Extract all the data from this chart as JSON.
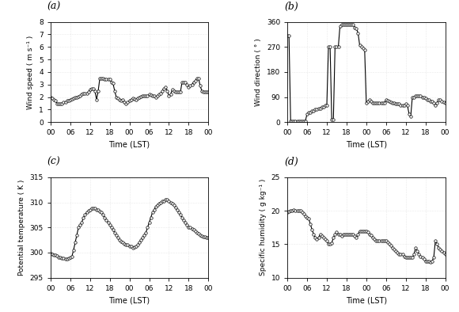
{
  "panel_labels": [
    "(a)",
    "(b)",
    "(c)",
    "(d)"
  ],
  "xlabel": "Time (LST)",
  "xlim": [
    0,
    48
  ],
  "xticks": [
    0,
    6,
    12,
    18,
    24,
    30,
    36,
    42,
    48
  ],
  "xticklabels": [
    "00",
    "06",
    "12",
    "18",
    "00",
    "06",
    "12",
    "18",
    "00"
  ],
  "wind_speed": {
    "ylabel": "Wind speed ( m s⁻¹ )",
    "ylim": [
      0,
      8
    ],
    "yticks": [
      0,
      1,
      2,
      3,
      4,
      5,
      6,
      7,
      8
    ],
    "data_x": [
      0,
      0.5,
      1,
      1.5,
      2,
      2.5,
      3,
      3.5,
      4,
      4.5,
      5,
      5.5,
      6,
      6.5,
      7,
      7.5,
      8,
      8.5,
      9,
      9.5,
      10,
      10.5,
      11,
      11.5,
      12,
      12.5,
      13,
      13.5,
      14,
      14.5,
      15,
      15.5,
      16,
      16.5,
      17,
      17.5,
      18,
      18.5,
      19,
      19.5,
      20,
      20.5,
      21,
      21.5,
      22,
      22.5,
      23,
      23.5,
      24,
      24.5,
      25,
      25.5,
      26,
      26.5,
      27,
      27.5,
      28,
      28.5,
      29,
      29.5,
      30,
      30.5,
      31,
      31.5,
      32,
      32.5,
      33,
      33.5,
      34,
      34.5,
      35,
      35.5,
      36,
      36.5,
      37,
      37.5,
      38,
      38.5,
      39,
      39.5,
      40,
      40.5,
      41,
      41.5,
      42,
      42.5,
      43,
      43.5,
      44,
      44.5,
      45,
      45.5,
      46,
      46.5,
      47,
      47.5,
      48
    ],
    "data_y": [
      2.0,
      1.9,
      1.8,
      1.7,
      1.5,
      1.5,
      1.5,
      1.5,
      1.6,
      1.6,
      1.7,
      1.75,
      1.8,
      1.85,
      1.9,
      1.95,
      2.0,
      2.05,
      2.1,
      2.2,
      2.3,
      2.3,
      2.3,
      2.4,
      2.6,
      2.7,
      2.7,
      2.5,
      1.8,
      2.5,
      3.5,
      3.5,
      3.5,
      3.45,
      3.4,
      3.4,
      3.4,
      3.2,
      3.1,
      2.5,
      2.0,
      1.9,
      1.8,
      1.75,
      1.8,
      1.6,
      1.5,
      1.6,
      1.7,
      1.8,
      1.9,
      1.85,
      1.8,
      1.9,
      2.0,
      2.05,
      2.1,
      2.1,
      2.1,
      2.1,
      2.2,
      2.15,
      2.1,
      2.1,
      2.0,
      2.1,
      2.2,
      2.3,
      2.5,
      2.7,
      2.8,
      2.5,
      2.1,
      2.2,
      2.6,
      2.5,
      2.4,
      2.4,
      2.4,
      2.4,
      3.2,
      3.2,
      3.2,
      3.0,
      2.8,
      2.9,
      3.0,
      3.2,
      3.3,
      3.5,
      3.5,
      2.9,
      2.5,
      2.4,
      2.4,
      2.4,
      2.4
    ]
  },
  "wind_dir": {
    "ylabel": "Wind direction ( ° )",
    "ylim": [
      0,
      360
    ],
    "yticks": [
      0,
      90,
      180,
      270,
      360
    ],
    "data_x": [
      0,
      0.5,
      1,
      1.5,
      2,
      2.5,
      3,
      3.5,
      4,
      4.5,
      5,
      5.5,
      6,
      6.5,
      7,
      7.5,
      8,
      8.5,
      9,
      9.5,
      10,
      10.5,
      11,
      11.5,
      12,
      12.5,
      13,
      13.5,
      14,
      14.5,
      15,
      15.5,
      16,
      16.5,
      17,
      17.5,
      18,
      18.5,
      19,
      19.5,
      20,
      20.5,
      21,
      21.5,
      22,
      22.5,
      23,
      23.5,
      24,
      24.5,
      25,
      25.5,
      26,
      26.5,
      27,
      27.5,
      28,
      28.5,
      29,
      29.5,
      30,
      30.5,
      31,
      31.5,
      32,
      32.5,
      33,
      33.5,
      34,
      34.5,
      35,
      35.5,
      36,
      36.5,
      37,
      37.5,
      38,
      38.5,
      39,
      39.5,
      40,
      40.5,
      41,
      41.5,
      42,
      42.5,
      43,
      43.5,
      44,
      44.5,
      45,
      45.5,
      46,
      46.5,
      47,
      47.5,
      48
    ],
    "data_y": [
      310,
      310,
      5,
      5,
      5,
      5,
      5,
      5,
      5,
      5,
      5,
      5,
      30,
      35,
      35,
      40,
      40,
      45,
      45,
      50,
      50,
      55,
      55,
      60,
      60,
      270,
      270,
      10,
      10,
      270,
      270,
      270,
      345,
      350,
      350,
      350,
      350,
      350,
      350,
      350,
      350,
      340,
      335,
      320,
      275,
      270,
      265,
      260,
      70,
      75,
      80,
      75,
      70,
      70,
      70,
      70,
      70,
      70,
      70,
      70,
      80,
      78,
      75,
      72,
      70,
      68,
      65,
      65,
      65,
      60,
      60,
      60,
      65,
      60,
      30,
      20,
      90,
      90,
      95,
      95,
      95,
      95,
      90,
      88,
      85,
      80,
      80,
      75,
      75,
      70,
      60,
      70,
      80,
      80,
      75,
      72,
      70
    ]
  },
  "pot_temp": {
    "ylabel": "Potential temperature ( K )",
    "ylim": [
      295,
      315
    ],
    "yticks": [
      295,
      300,
      305,
      310,
      315
    ],
    "data_x": [
      0,
      0.5,
      1,
      1.5,
      2,
      2.5,
      3,
      3.5,
      4,
      4.5,
      5,
      5.5,
      6,
      6.5,
      7,
      7.5,
      8,
      8.5,
      9,
      9.5,
      10,
      10.5,
      11,
      11.5,
      12,
      12.5,
      13,
      13.5,
      14,
      14.5,
      15,
      15.5,
      16,
      16.5,
      17,
      17.5,
      18,
      18.5,
      19,
      19.5,
      20,
      20.5,
      21,
      21.5,
      22,
      22.5,
      23,
      23.5,
      24,
      24.5,
      25,
      25.5,
      26,
      26.5,
      27,
      27.5,
      28,
      28.5,
      29,
      29.5,
      30,
      30.5,
      31,
      31.5,
      32,
      32.5,
      33,
      33.5,
      34,
      34.5,
      35,
      35.5,
      36,
      36.5,
      37,
      37.5,
      38,
      38.5,
      39,
      39.5,
      40,
      40.5,
      41,
      41.5,
      42,
      42.5,
      43,
      43.5,
      44,
      44.5,
      45,
      45.5,
      46,
      46.5,
      47,
      47.5,
      48
    ],
    "data_y": [
      299.8,
      299.7,
      299.6,
      299.5,
      299.3,
      299.1,
      299.0,
      298.9,
      298.9,
      298.8,
      298.8,
      298.9,
      299.0,
      299.2,
      300.5,
      302.0,
      303.5,
      305.0,
      305.5,
      306.0,
      307.0,
      307.5,
      308.0,
      308.3,
      308.5,
      308.8,
      308.8,
      308.8,
      308.6,
      308.5,
      308.2,
      308.0,
      307.5,
      307.0,
      306.5,
      306.0,
      305.5,
      305.0,
      304.5,
      304.0,
      303.5,
      303.0,
      302.5,
      302.2,
      302.0,
      301.8,
      301.5,
      301.5,
      301.3,
      301.2,
      301.0,
      301.1,
      301.2,
      301.5,
      302.0,
      302.5,
      303.0,
      303.5,
      304.0,
      305.0,
      306.0,
      307.0,
      308.0,
      308.5,
      309.2,
      309.5,
      309.8,
      310.0,
      310.2,
      310.3,
      310.5,
      310.5,
      310.2,
      310.0,
      309.8,
      309.5,
      309.0,
      308.5,
      308.0,
      307.5,
      307.0,
      306.5,
      306.0,
      305.5,
      305.0,
      305.0,
      304.8,
      304.5,
      304.2,
      304.0,
      303.8,
      303.5,
      303.3,
      303.2,
      303.1,
      303.0,
      303.0
    ]
  },
  "spec_hum": {
    "ylabel": "Specific humidity ( g kg⁻¹ )",
    "ylim": [
      10,
      25
    ],
    "yticks": [
      10,
      15,
      20,
      25
    ],
    "data_x": [
      0,
      0.5,
      1,
      1.5,
      2,
      2.5,
      3,
      3.5,
      4,
      4.5,
      5,
      5.5,
      6,
      6.5,
      7,
      7.5,
      8,
      8.5,
      9,
      9.5,
      10,
      10.5,
      11,
      11.5,
      12,
      12.5,
      13,
      13.5,
      14,
      14.5,
      15,
      15.5,
      16,
      16.5,
      17,
      17.5,
      18,
      18.5,
      19,
      19.5,
      20,
      20.5,
      21,
      21.5,
      22,
      22.5,
      23,
      23.5,
      24,
      24.5,
      25,
      25.5,
      26,
      26.5,
      27,
      27.5,
      28,
      28.5,
      29,
      29.5,
      30,
      30.5,
      31,
      31.5,
      32,
      32.5,
      33,
      33.5,
      34,
      34.5,
      35,
      35.5,
      36,
      36.5,
      37,
      37.5,
      38,
      38.5,
      39,
      39.5,
      40,
      40.5,
      41,
      41.5,
      42,
      42.5,
      43,
      43.5,
      44,
      44.5,
      45,
      45.5,
      46,
      46.5,
      47,
      47.5,
      48
    ],
    "data_y": [
      19.8,
      19.9,
      20.0,
      20.0,
      20.1,
      20.0,
      20.0,
      20.0,
      20.0,
      19.8,
      19.5,
      19.2,
      19.0,
      18.8,
      18.0,
      17.2,
      16.5,
      16.0,
      15.8,
      16.0,
      16.5,
      16.2,
      16.0,
      15.8,
      15.5,
      15.0,
      15.0,
      15.2,
      16.0,
      16.5,
      16.8,
      16.5,
      16.5,
      16.2,
      16.5,
      16.5,
      16.5,
      16.5,
      16.5,
      16.5,
      16.5,
      16.2,
      16.0,
      16.5,
      17.0,
      17.0,
      17.0,
      17.0,
      17.0,
      16.8,
      16.5,
      16.3,
      16.0,
      15.8,
      15.5,
      15.5,
      15.5,
      15.5,
      15.5,
      15.5,
      15.5,
      15.3,
      15.0,
      14.8,
      14.5,
      14.2,
      14.0,
      13.8,
      13.5,
      13.5,
      13.5,
      13.2,
      13.0,
      13.0,
      13.0,
      13.0,
      13.0,
      13.5,
      14.5,
      14.0,
      13.5,
      13.2,
      13.0,
      12.8,
      12.5,
      12.5,
      12.5,
      12.3,
      12.5,
      13.0,
      15.5,
      15.0,
      14.5,
      14.2,
      14.0,
      13.8,
      13.5
    ]
  },
  "line_color": "#000000",
  "marker": "o",
  "markersize": 2.5,
  "linewidth": 0.8,
  "bg_color": "#ffffff"
}
